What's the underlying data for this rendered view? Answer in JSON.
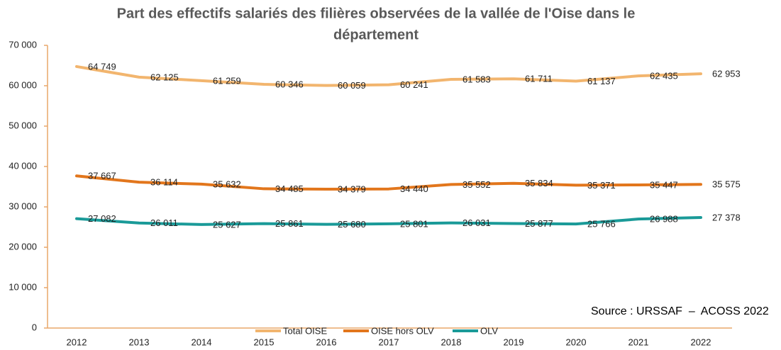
{
  "chart_data": {
    "type": "line",
    "title": [
      "Part des effectifs salariés des filières observées de la vallée de l'Oise dans le",
      "département"
    ],
    "categories": [
      "2012",
      "2013",
      "2014",
      "2015",
      "2016",
      "2017",
      "2018",
      "2019",
      "2020",
      "2021",
      "2022"
    ],
    "series": [
      {
        "name": "Total OISE",
        "color": "#f2b56e",
        "values": [
          64749,
          62125,
          61259,
          60346,
          60059,
          60241,
          61583,
          61711,
          61137,
          62435,
          62953
        ],
        "value_labels": [
          "64 749",
          "62 125",
          "61 259",
          "60 346",
          "60 059",
          "60 241",
          "61 583",
          "61 711",
          "61 137",
          "62 435",
          "62 953"
        ]
      },
      {
        "name": "OISE hors OLV",
        "color": "#e2761c",
        "values": [
          37667,
          36114,
          35632,
          34485,
          34379,
          34440,
          35552,
          35834,
          35371,
          35447,
          35575
        ],
        "value_labels": [
          "37 667",
          "36 114",
          "35 632",
          "34 485",
          "34 379",
          "34 440",
          "35 552",
          "35 834",
          "35 371",
          "35 447",
          "35 575"
        ]
      },
      {
        "name": "OLV",
        "color": "#1a9a98",
        "values": [
          27082,
          26011,
          25627,
          25861,
          25680,
          25801,
          26031,
          25877,
          25766,
          26988,
          27378
        ],
        "value_labels": [
          "27 082",
          "26 011",
          "25 627",
          "25 861",
          "25 680",
          "25 801",
          "26 031",
          "25 877",
          "25 766",
          "26 988",
          "27 378"
        ]
      }
    ],
    "ylim": [
      0,
      70000
    ],
    "yticks": [
      0,
      {
        "value": 10000,
        "label": "10 000"
      },
      {
        "value": 20000,
        "label": "20 000"
      },
      {
        "value": 30000,
        "label": "30 000"
      },
      {
        "value": 40000,
        "label": "40 000"
      },
      {
        "value": 50000,
        "label": "50 000"
      },
      {
        "value": 60000,
        "label": "60 000"
      },
      {
        "value": 70000,
        "label": "70 000"
      }
    ],
    "legend": "bottom",
    "annotation": "Source : URSSAF  –  ACOSS 2022"
  }
}
